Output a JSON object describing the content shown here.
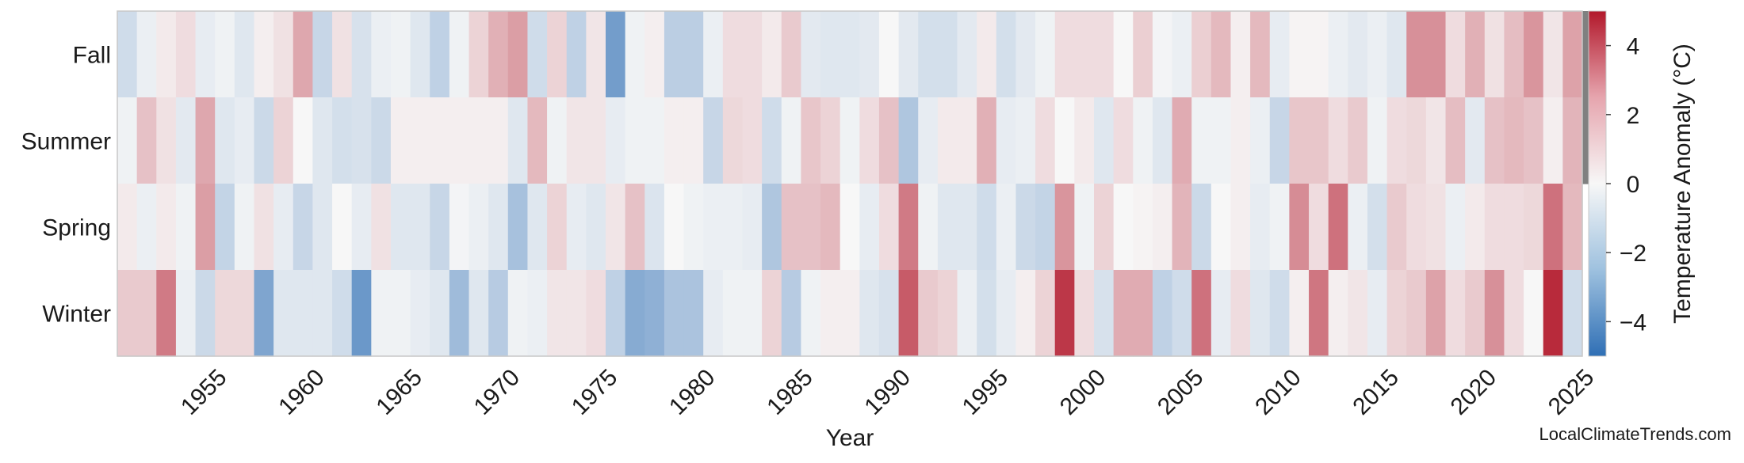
{
  "chart_data": {
    "type": "heatmap",
    "xlabel": "Year",
    "colorbar_label": "Temperature Anomaly (°C)",
    "colorbar_range": [
      -5,
      5
    ],
    "colorbar_ticks": [
      4,
      2,
      0,
      -2,
      -4
    ],
    "colormap": {
      "low": "#2f6fb5",
      "mid": "#f7f7f7",
      "high": "#b2182b",
      "missing": "#808080"
    },
    "rows": [
      "Fall",
      "Summer",
      "Spring",
      "Winter"
    ],
    "x_start": 1951,
    "x_end": 2025,
    "x_ticks": [
      1955,
      1960,
      1965,
      1970,
      1975,
      1980,
      1985,
      1990,
      1995,
      2000,
      2005,
      2010,
      2015,
      2020,
      2025
    ],
    "values": {
      "Fall": [
        -1.0,
        -0.3,
        0.3,
        0.6,
        -0.4,
        -0.2,
        -0.6,
        0.2,
        0.5,
        1.8,
        -1.2,
        0.5,
        -0.8,
        -0.3,
        -0.2,
        -0.6,
        -1.4,
        -0.2,
        0.8,
        1.6,
        2.0,
        -1.0,
        0.8,
        -1.4,
        0.4,
        -3.3,
        -0.2,
        0.2,
        -1.5,
        -1.5,
        -0.3,
        0.6,
        0.6,
        0.3,
        1.0,
        -0.5,
        -0.6,
        -0.6,
        -0.5,
        0.0,
        -0.5,
        -0.9,
        -0.9,
        -0.5,
        0.3,
        -0.9,
        -0.5,
        -0.2,
        0.6,
        0.6,
        0.6,
        0.0,
        0.9,
        -0.1,
        -0.3,
        0.9,
        1.4,
        0.2,
        1.4,
        -0.4,
        0.1,
        0.1,
        -0.3,
        -0.5,
        -0.3,
        -0.6,
        2.3,
        2.3,
        0.6,
        1.6,
        0.5,
        1.3,
        2.2,
        0.4,
        1.9,
        null
      ],
      "Summer": [
        -0.2,
        1.2,
        0.5,
        -0.5,
        1.8,
        -0.6,
        -0.4,
        -1.1,
        0.8,
        0.0,
        -0.6,
        -0.9,
        -0.8,
        -1.1,
        0.2,
        0.2,
        0.2,
        0.2,
        0.2,
        0.2,
        -0.6,
        1.4,
        -0.2,
        0.4,
        0.4,
        -0.4,
        -0.2,
        -0.2,
        0.2,
        0.2,
        -1.2,
        0.7,
        0.6,
        -1.0,
        -0.2,
        1.1,
        0.8,
        -0.2,
        0.6,
        1.2,
        -1.8,
        -0.4,
        0.3,
        0.3,
        1.6,
        -0.4,
        -0.3,
        0.6,
        0.0,
        0.3,
        -0.6,
        0.6,
        -0.2,
        -0.6,
        1.7,
        -0.2,
        -0.2,
        0.2,
        -0.3,
        -1.2,
        1.1,
        1.1,
        0.6,
        1.0,
        -0.2,
        0.6,
        0.7,
        0.4,
        1.3,
        -0.5,
        1.2,
        1.4,
        1.2,
        0.2,
        1.5,
        null
      ],
      "Spring": [
        0.3,
        -0.3,
        0.3,
        -0.2,
        2.0,
        -1.3,
        -0.2,
        0.5,
        -0.4,
        -1.2,
        -0.6,
        0.0,
        -0.4,
        0.5,
        -0.6,
        -0.6,
        -1.2,
        -0.1,
        -0.3,
        -0.6,
        -2.0,
        -0.6,
        0.8,
        -0.4,
        -0.6,
        0.4,
        1.2,
        -0.7,
        0.0,
        -0.2,
        -0.3,
        -0.3,
        -0.4,
        -1.8,
        1.2,
        1.2,
        1.4,
        0.0,
        -0.4,
        0.6,
        2.8,
        -0.2,
        -0.6,
        -0.6,
        -1.0,
        -0.3,
        -1.1,
        -1.3,
        2.2,
        -0.2,
        0.8,
        0.0,
        0.1,
        0.2,
        1.5,
        -1.1,
        0.0,
        0.2,
        -0.4,
        -0.2,
        2.4,
        0.6,
        3.0,
        -0.3,
        -0.9,
        1.0,
        0.6,
        0.5,
        -0.3,
        0.3,
        0.6,
        0.6,
        0.7,
        3.0,
        1.4
      ],
      "Winter": [
        1.0,
        1.0,
        2.8,
        -0.3,
        -1.1,
        0.7,
        0.7,
        -3.0,
        -0.6,
        -0.6,
        -0.6,
        -1.0,
        -3.5,
        -0.2,
        -0.2,
        -0.4,
        -0.6,
        -2.2,
        -0.6,
        -1.6,
        -0.2,
        -0.3,
        0.4,
        0.4,
        0.6,
        -1.4,
        -2.8,
        -2.6,
        -1.9,
        -1.9,
        -0.4,
        -0.2,
        -0.2,
        0.8,
        -1.6,
        -0.2,
        0.2,
        0.2,
        -0.6,
        -0.8,
        3.5,
        1.0,
        0.8,
        -0.3,
        -0.9,
        -0.4,
        0.2,
        0.8,
        4.3,
        0.6,
        -0.8,
        1.7,
        1.7,
        -1.4,
        -1.0,
        3.0,
        -0.4,
        0.6,
        -0.6,
        -1.0,
        0.2,
        2.9,
        0.2,
        0.4,
        -0.4,
        0.8,
        1.0,
        1.9,
        0.6,
        1.0,
        2.3,
        0.6,
        0.0,
        4.6,
        -1.0
      ]
    }
  },
  "watermark": "LocalClimateTrends.com"
}
